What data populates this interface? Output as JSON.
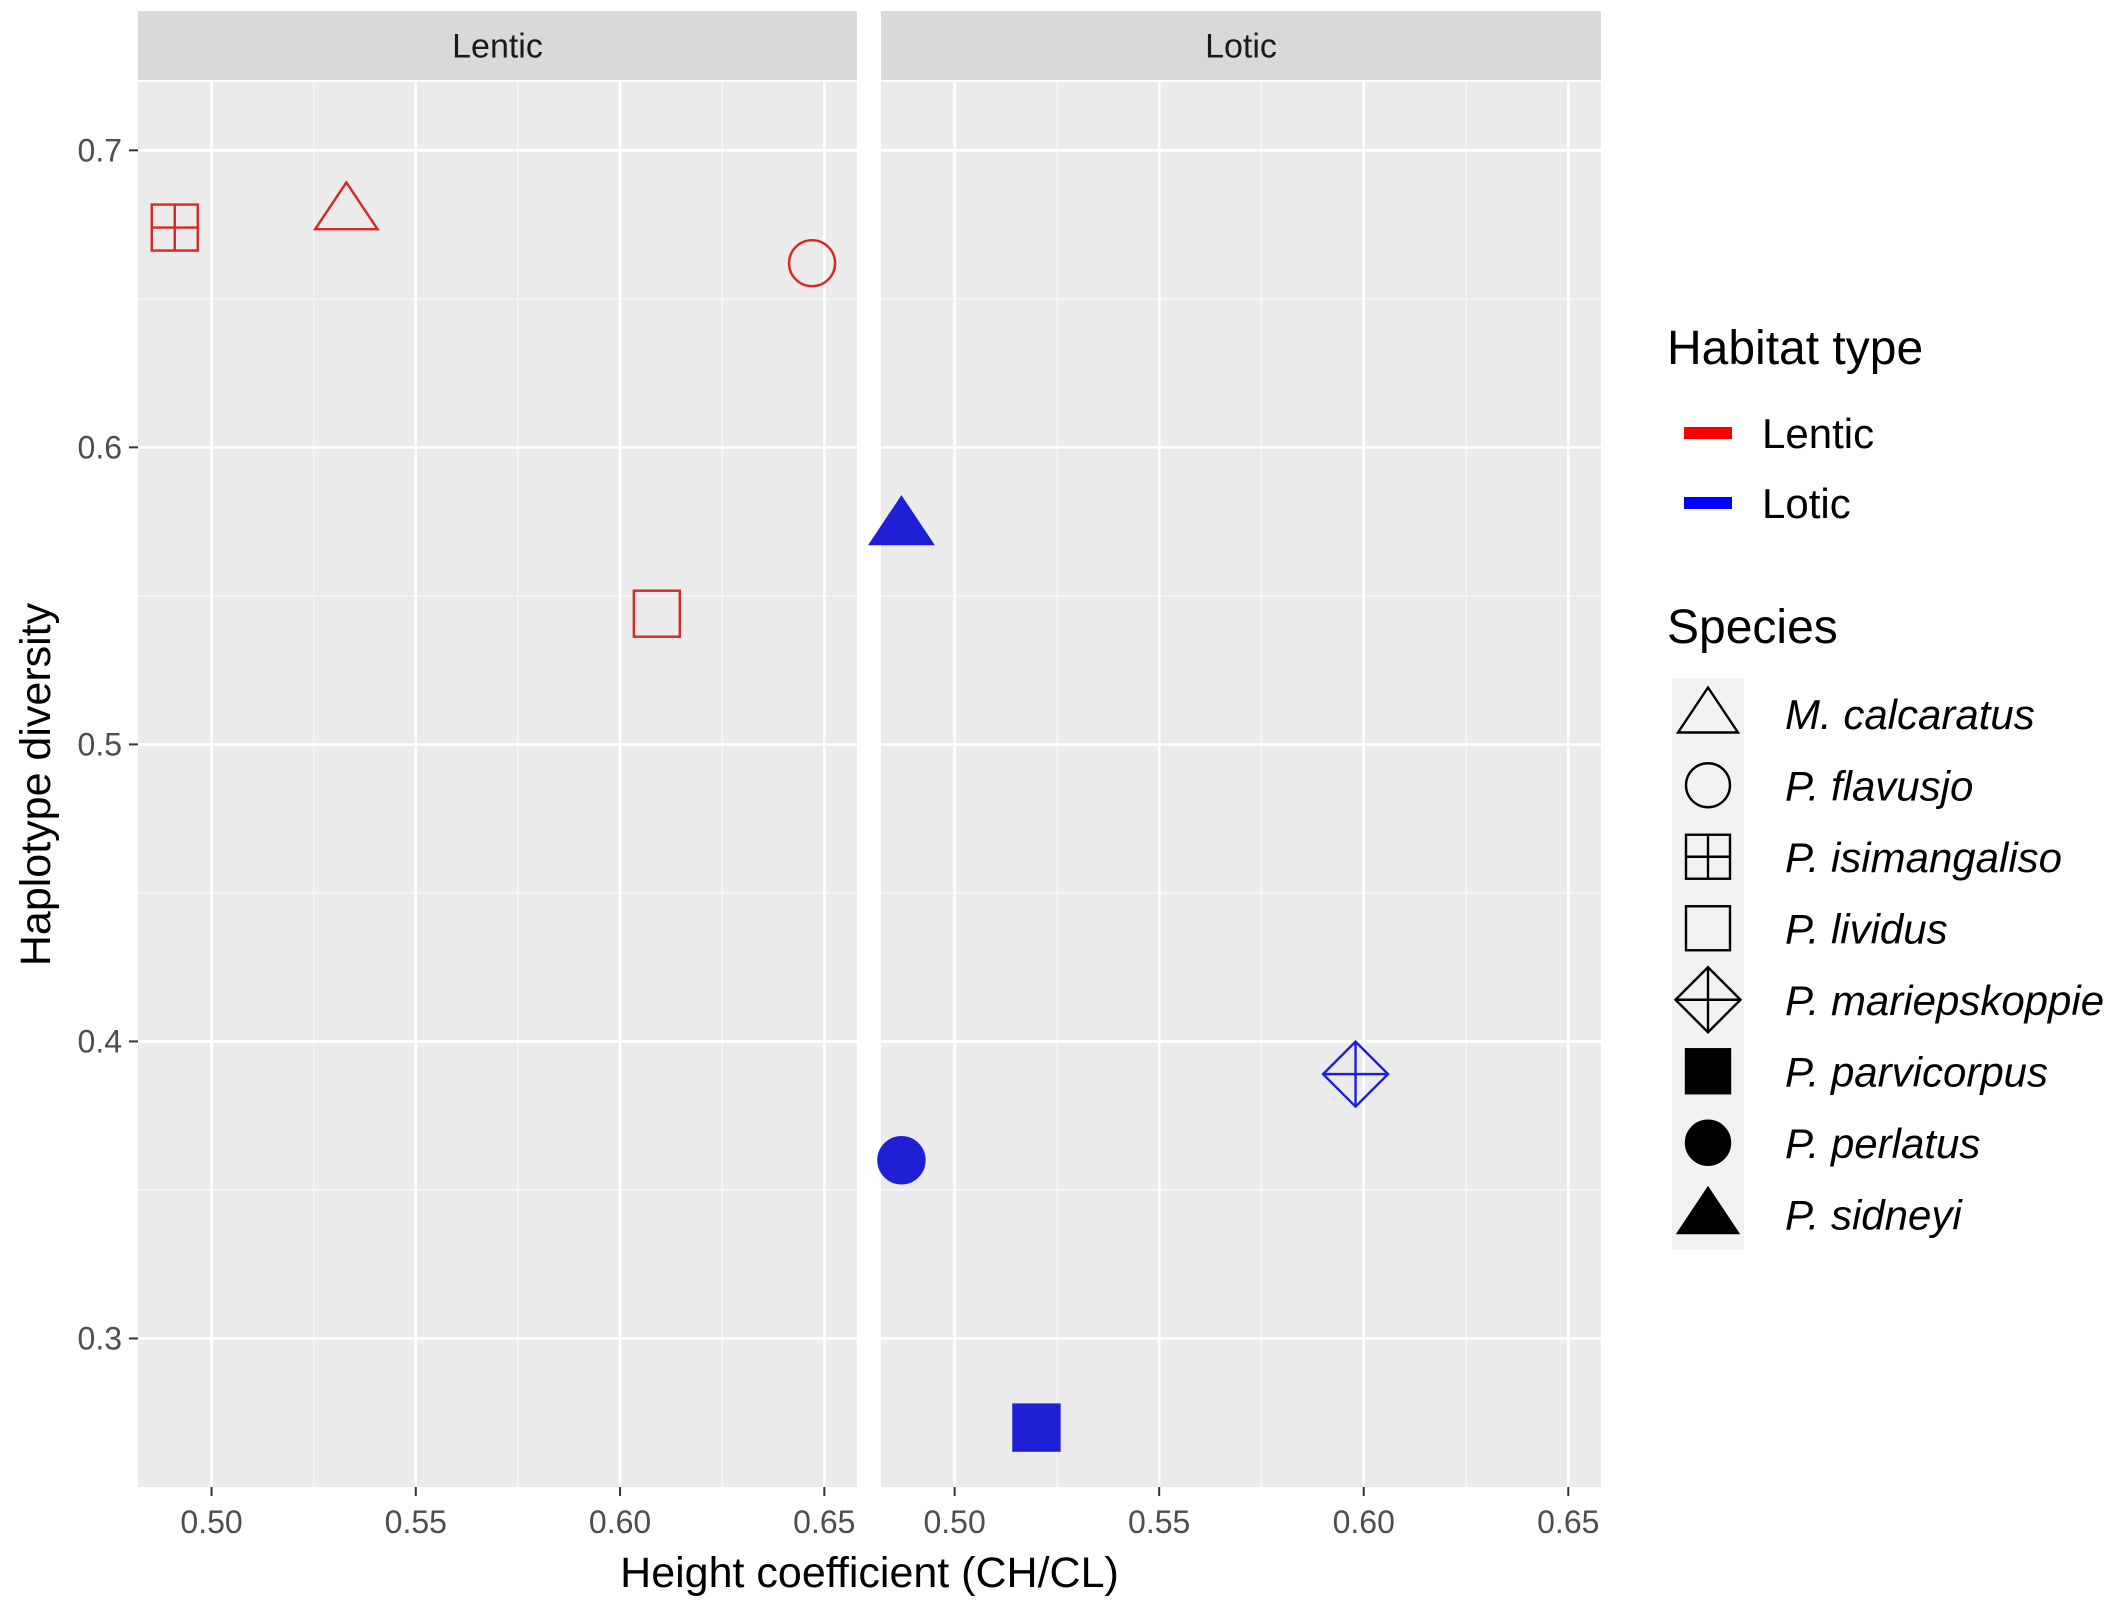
{
  "chart_data": {
    "type": "scatter",
    "xlabel": "Height coefficient (CH/CL)",
    "ylabel": "Haplotype diversity",
    "xlim": [
      0.482,
      0.658
    ],
    "ylim": [
      0.25,
      0.723
    ],
    "x_ticks": [
      0.5,
      0.55,
      0.6,
      0.65
    ],
    "x_tick_labels": [
      "0.50",
      "0.55",
      "0.60",
      "0.65"
    ],
    "y_ticks": [
      0.3,
      0.4,
      0.5,
      0.6,
      0.7
    ],
    "y_tick_labels": [
      "0.3",
      "0.4",
      "0.5",
      "0.6",
      "0.7"
    ],
    "grid": true,
    "facets": [
      {
        "label": "Lentic",
        "points": [
          {
            "species": "M. calcaratus",
            "x": 0.533,
            "y": 0.68,
            "habitat": "Lentic"
          },
          {
            "species": "P. flavusjo",
            "x": 0.647,
            "y": 0.662,
            "habitat": "Lentic"
          },
          {
            "species": "P. isimangaliso",
            "x": 0.491,
            "y": 0.674,
            "habitat": "Lentic"
          },
          {
            "species": "P. lividus",
            "x": 0.609,
            "y": 0.544,
            "habitat": "Lentic"
          }
        ]
      },
      {
        "label": "Lotic",
        "points": [
          {
            "species": "P. sidneyi",
            "x": 0.487,
            "y": 0.574,
            "habitat": "Lotic"
          },
          {
            "species": "P. mariepskoppie",
            "x": 0.598,
            "y": 0.389,
            "habitat": "Lotic"
          },
          {
            "species": "P. perlatus",
            "x": 0.487,
            "y": 0.36,
            "habitat": "Lotic"
          },
          {
            "species": "P. parvicorpus",
            "x": 0.52,
            "y": 0.27,
            "habitat": "Lotic"
          }
        ]
      }
    ],
    "legend": {
      "placement": "right",
      "habitat_title": "Habitat type",
      "habitat_items": [
        {
          "label": "Lentic",
          "color": "#ff0000"
        },
        {
          "label": "Lotic",
          "color": "#0000ff"
        }
      ],
      "species_title": "Species",
      "species_items": [
        {
          "label": "M. calcaratus",
          "shape": "open-triangle"
        },
        {
          "label": "P. flavusjo",
          "shape": "open-circle"
        },
        {
          "label": "P. isimangaliso",
          "shape": "boxed-plus"
        },
        {
          "label": "P. lividus",
          "shape": "open-square"
        },
        {
          "label": "P. mariepskoppie",
          "shape": "diamond-plus"
        },
        {
          "label": "P. parvicorpus",
          "shape": "filled-square"
        },
        {
          "label": "P. perlatus",
          "shape": "filled-circle"
        },
        {
          "label": "P. sidneyi",
          "shape": "filled-triangle"
        }
      ]
    },
    "colors": {
      "Lentic": "#d62728",
      "Lotic": "#1f1fd6",
      "panel_background": "#ebebeb",
      "strip_background": "#d9d9d9",
      "grid_major": "#ffffff"
    }
  }
}
